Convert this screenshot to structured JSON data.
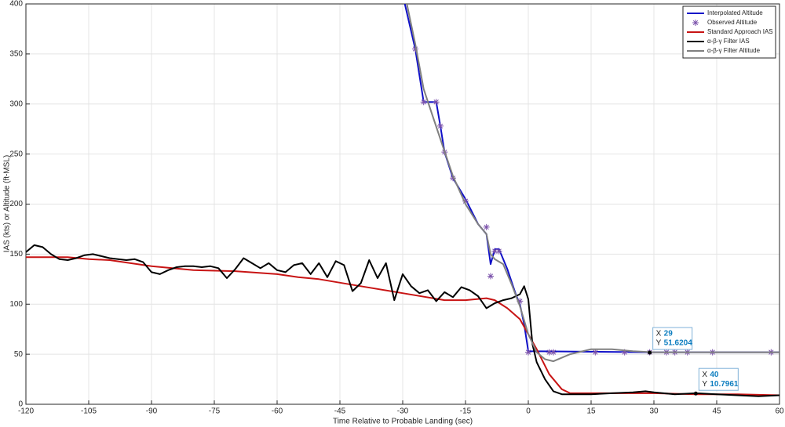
{
  "chart_data": {
    "type": "line",
    "xlabel": "Time Relative to Probable Landing (sec)",
    "ylabel": "IAS (kts) or Altitude (ft-MSL)",
    "xlim": [
      -120,
      60
    ],
    "ylim": [
      0,
      400
    ],
    "xticks": [
      -120,
      -105,
      -90,
      -75,
      -60,
      -45,
      -30,
      -15,
      0,
      15,
      30,
      45,
      60
    ],
    "yticks": [
      0,
      50,
      100,
      150,
      200,
      250,
      300,
      350,
      400
    ],
    "grid": true,
    "legend": "northeast",
    "series": [
      {
        "name": "Interpolated Altitude",
        "color": "#1010c8",
        "marker": null,
        "x": [
          -29.5,
          -27,
          -25,
          -24,
          -22,
          -21,
          -20,
          -18,
          -15,
          -12,
          -10,
          -9,
          -8,
          -7,
          -5,
          -3,
          -2,
          -1,
          0,
          30,
          60
        ],
        "values": [
          400,
          355,
          302,
          302,
          302,
          278,
          252,
          226,
          205,
          180,
          170,
          140,
          155,
          155,
          135,
          110,
          100,
          80,
          53,
          52,
          52
        ]
      },
      {
        "name": "Observed Altitude",
        "color": "#7b52ab",
        "marker": "asterisk",
        "x": [
          -27,
          -25,
          -22,
          -21,
          -20,
          -18,
          -15,
          -10,
          -9,
          -8,
          -7,
          -2,
          0,
          5,
          6,
          16,
          23,
          29,
          33,
          35,
          38,
          44,
          58
        ],
        "values": [
          355,
          302,
          302,
          278,
          252,
          226,
          203,
          177,
          128,
          153,
          153,
          103,
          52,
          52,
          52,
          52,
          52,
          52,
          52,
          52,
          52,
          52,
          52
        ]
      },
      {
        "name": "Standard Approach IAS",
        "color": "#c81414",
        "marker": null,
        "x": [
          -120,
          -110,
          -105,
          -100,
          -90,
          -80,
          -70,
          -60,
          -55,
          -50,
          -40,
          -30,
          -20,
          -15,
          -10,
          -8,
          -5,
          -2,
          0,
          2,
          5,
          8,
          10,
          20,
          30,
          40,
          50,
          60
        ],
        "values": [
          147,
          147,
          145,
          144,
          138,
          134,
          133,
          130,
          127,
          125,
          118,
          111,
          104,
          104,
          106,
          104,
          96,
          85,
          70,
          55,
          30,
          15,
          11,
          11,
          11,
          10,
          10,
          9
        ]
      },
      {
        "name": "α-β-γ Filter IAS",
        "color": "#000000",
        "marker": null,
        "x": [
          -120,
          -118,
          -116,
          -114,
          -112,
          -110,
          -108,
          -106,
          -104,
          -102,
          -100,
          -98,
          -96,
          -94,
          -92,
          -90,
          -88,
          -86,
          -84,
          -82,
          -80,
          -78,
          -76,
          -74,
          -72,
          -70,
          -68,
          -66,
          -64,
          -62,
          -60,
          -58,
          -56,
          -54,
          -52,
          -50,
          -48,
          -46,
          -44,
          -42,
          -40,
          -38,
          -36,
          -34,
          -32,
          -30,
          -28,
          -26,
          -24,
          -22,
          -20,
          -18,
          -16,
          -14,
          -12,
          -10,
          -8,
          -6,
          -4,
          -2,
          -1,
          0,
          1,
          2,
          4,
          6,
          8,
          10,
          15,
          20,
          25,
          28,
          30,
          35,
          40,
          45,
          50,
          55,
          60
        ],
        "values": [
          152,
          159,
          157,
          150,
          145,
          144,
          146,
          149,
          150,
          148,
          146,
          145,
          144,
          145,
          142,
          132,
          130,
          134,
          137,
          138,
          138,
          137,
          138,
          136,
          126,
          135,
          146,
          141,
          136,
          141,
          134,
          132,
          139,
          141,
          130,
          141,
          127,
          143,
          139,
          113,
          121,
          144,
          126,
          141,
          104,
          130,
          118,
          111,
          114,
          103,
          112,
          107,
          117,
          114,
          108,
          96,
          101,
          104,
          106,
          110,
          118,
          105,
          60,
          42,
          25,
          13,
          10,
          10,
          10,
          11,
          12,
          13,
          12,
          10,
          11,
          10,
          9,
          8,
          9
        ]
      },
      {
        "name": "α-β-γ Filter Altitude",
        "color": "#808080",
        "marker": null,
        "x": [
          -29,
          -27,
          -25,
          -23,
          -21,
          -18,
          -15,
          -12,
          -10,
          -9,
          -8,
          -6,
          -4,
          -2,
          0,
          2,
          4,
          6,
          10,
          15,
          20,
          25,
          30,
          40,
          60
        ],
        "values": [
          400,
          360,
          315,
          290,
          265,
          228,
          200,
          180,
          170,
          150,
          145,
          140,
          120,
          98,
          70,
          52,
          45,
          43,
          50,
          55,
          55,
          53,
          52,
          52,
          52
        ]
      }
    ],
    "datatips": [
      {
        "x_label": "X",
        "x": 29,
        "y_label": "Y",
        "y": 51.6204
      },
      {
        "x_label": "X",
        "x": 40,
        "y_label": "Y",
        "y": 10.7961
      }
    ]
  }
}
